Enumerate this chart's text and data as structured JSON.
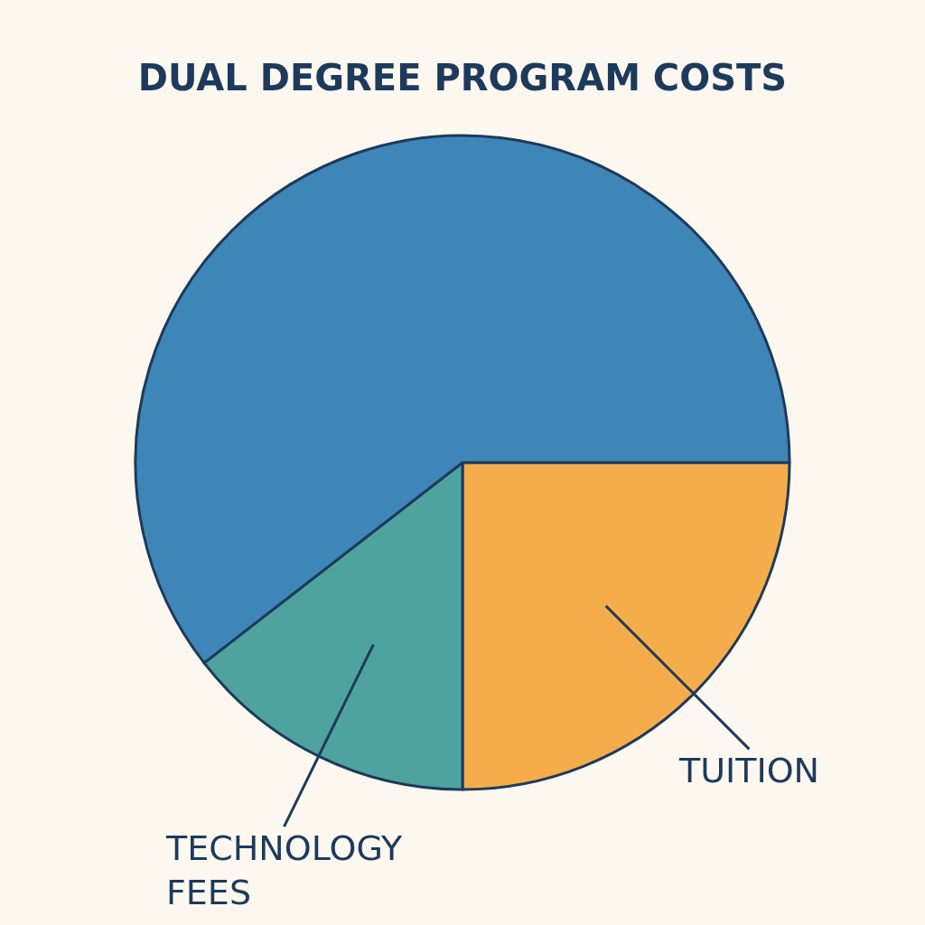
{
  "chart_data": {
    "type": "pie",
    "title": "DUAL DEGREE PROGRAM COSTS",
    "categories": [
      "TUITION",
      "TECHNOLOGY\nFEES",
      null
    ],
    "values": [
      25,
      14.5,
      60.5
    ],
    "colors": [
      "#f5ac4a",
      "#4fa39f",
      "#3f86b8"
    ],
    "legend": false
  }
}
